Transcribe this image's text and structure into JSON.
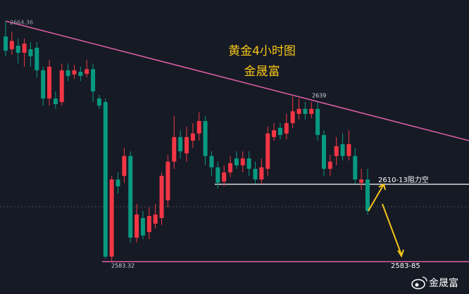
{
  "chart_data": {
    "type": "candlestick",
    "title": "黄金4小时图",
    "subtitle": "金晟富",
    "annotations": [
      "2664.36",
      "2639",
      "2583.32",
      "2610-13阻力空",
      "2583-85"
    ],
    "watermark": "金晟富",
    "up_color": "#f23645",
    "down_color": "#089981",
    "ylim": [
      2572.4,
      2671.5
    ],
    "open": [
      2659.2,
      2654.9,
      2656.1,
      2653.7,
      2654.9,
      2655.4,
      2647.8,
      2638.3,
      2638.3,
      2637.1,
      2647.8,
      2646.4,
      2647.3,
      2646.6,
      2648.2,
      2638.3,
      2637.1,
      2585,
      2611,
      2612.2,
      2618.9,
      2591.4,
      2598,
      2593.3,
      2596.1,
      2598,
      2604,
      2617,
      2625.3,
      2619.8,
      2624.1,
      2626.5,
      2630.7,
      2618.9,
      2615.1,
      2610.3,
      2613.4,
      2618.1,
      2615.8,
      2618.1,
      2614.6,
      2611,
      2614.6,
      2625.3,
      2628.4,
      2626.5,
      2630,
      2633.1,
      2634.8,
      2633.1,
      2634.8,
      2626,
      2614.6,
      2618.9,
      2622.9,
      2618.9,
      2618.9,
      2609.9,
      2611
    ],
    "high": [
      2664.36,
      2660.8,
      2658.5,
      2658.5,
      2657.3,
      2657.3,
      2649,
      2651.3,
      2640.7,
      2650.1,
      2650.1,
      2649.7,
      2649,
      2651.3,
      2650.1,
      2639.5,
      2638.3,
      2612.2,
      2613.4,
      2621.7,
      2620.5,
      2602.8,
      2600.4,
      2601.6,
      2602.8,
      2613.4,
      2619.3,
      2632.4,
      2627.6,
      2628.8,
      2630,
      2633.6,
      2632.4,
      2620.5,
      2617,
      2615.8,
      2618.9,
      2620.5,
      2620.5,
      2620.5,
      2617,
      2618.1,
      2628.8,
      2630,
      2630,
      2633.1,
      2639,
      2638.3,
      2637.1,
      2637.1,
      2637.1,
      2627.6,
      2619.3,
      2625.3,
      2626.5,
      2627.6,
      2621.7,
      2614.6,
      2614.6
    ],
    "low": [
      2652.5,
      2653,
      2650.1,
      2649,
      2649,
      2645.4,
      2635.9,
      2635.9,
      2634.8,
      2635.9,
      2644.2,
      2644.9,
      2644.2,
      2645.4,
      2637.1,
      2634.8,
      2584.3,
      2583.32,
      2606.3,
      2609.9,
      2589.7,
      2589.7,
      2590.9,
      2590.9,
      2594.5,
      2595.6,
      2601.6,
      2614.6,
      2618.1,
      2617,
      2621.7,
      2624.1,
      2615.8,
      2612.2,
      2608,
      2608.7,
      2611.8,
      2614.6,
      2613.4,
      2612.2,
      2609.4,
      2609.4,
      2612.2,
      2624.1,
      2624.5,
      2624.5,
      2628.4,
      2631.2,
      2631.2,
      2631.7,
      2624.1,
      2612.2,
      2612.2,
      2615.8,
      2617.4,
      2617.4,
      2609.4,
      2607.5,
      2599.2
    ],
    "close": [
      2654.4,
      2657.7,
      2653.7,
      2656.8,
      2652.5,
      2647.8,
      2638.3,
      2649,
      2636.4,
      2647.8,
      2645.9,
      2647.8,
      2645.9,
      2648.2,
      2640.7,
      2635.9,
      2585,
      2611,
      2608.7,
      2618.9,
      2591.4,
      2599.2,
      2592.1,
      2598.7,
      2599.2,
      2612.2,
      2617,
      2625.3,
      2620.5,
      2625.3,
      2626.5,
      2630.7,
      2618.9,
      2615.1,
      2609.9,
      2613.4,
      2616.5,
      2615.8,
      2618.1,
      2614.6,
      2611,
      2615.1,
      2626.5,
      2627.6,
      2626,
      2630,
      2634,
      2634.8,
      2633.1,
      2634.8,
      2626,
      2614.6,
      2617,
      2622.2,
      2618.9,
      2622.9,
      2611,
      2611,
      2600.4
    ]
  }
}
